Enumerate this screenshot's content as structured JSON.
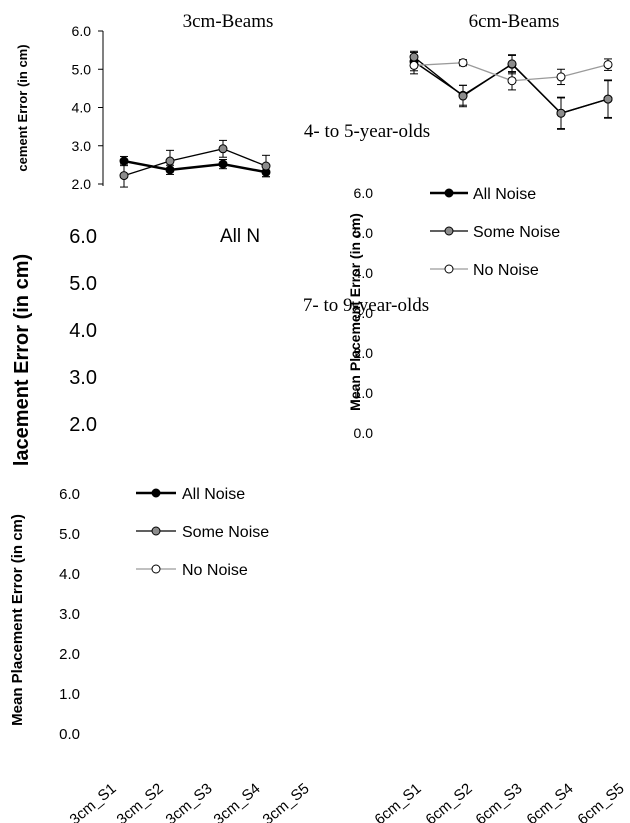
{
  "chart_data": [
    {
      "type": "line",
      "title": "3cm-Beams",
      "ylabel": "cement Error (in cm)",
      "ylim": [
        2.0,
        6.0
      ],
      "yticks": [
        "6.0",
        "5.0",
        "4.0",
        "3.0",
        "2.0"
      ],
      "categories": [
        "3cm_S1",
        "3cm_S2",
        "3cm_S3",
        "3cm_S4"
      ],
      "series": [
        {
          "name": "All Noise",
          "values": [
            2.6,
            2.37,
            2.52,
            2.31
          ],
          "err": [
            0.12,
            0.12,
            0.12,
            0.12
          ]
        },
        {
          "name": "Some Noise",
          "values": [
            2.22,
            2.6,
            2.92,
            2.47
          ],
          "err": [
            0.3,
            0.28,
            0.22,
            0.28
          ]
        }
      ]
    },
    {
      "type": "line",
      "title": "6cm-Beams",
      "ylim": [
        2.0,
        6.0
      ],
      "categories": [
        "6cm_S1",
        "6cm_S2",
        "6cm_S3",
        "6cm_S4",
        "6cm_S5"
      ],
      "series": [
        {
          "name": "All Noise",
          "values": [
            5.2,
            4.32,
            5.13,
            3.85,
            4.22
          ],
          "err": [
            0.24,
            0.26,
            0.25,
            0.42,
            0.5
          ]
        },
        {
          "name": "Some Noise",
          "values": [
            5.32,
            4.3,
            5.14,
            3.85,
            4.22
          ],
          "err": [
            0.15,
            0.28,
            0.22,
            0.4,
            0.48
          ]
        },
        {
          "name": "No Noise",
          "values": [
            5.1,
            5.17,
            4.7,
            4.8,
            5.12
          ],
          "err": [
            0.22,
            0.08,
            0.24,
            0.2,
            0.15
          ]
        }
      ]
    },
    {
      "type": "line",
      "title": "4- to 5-year-olds",
      "ylabel": "Mean Placement Error (in cm)",
      "yticks": [
        "6.0",
        "5.0",
        "4.0",
        "3.0",
        "2.0",
        "1.0",
        "0.0"
      ],
      "legend": [
        "All Noise",
        "Some Noise",
        "No Noise"
      ]
    },
    {
      "type": "line",
      "title": "7- to 9-year-olds",
      "ylabel": "lacement Error (in cm)",
      "yticks": [
        "6.0",
        "5.0",
        "4.0",
        "3.0",
        "2.0"
      ],
      "legend": [
        "All N"
      ]
    },
    {
      "type": "line",
      "ylabel": "Mean Placement Error (in cm)",
      "yticks": [
        "6.0",
        "5.0",
        "4.0",
        "3.0",
        "2.0",
        "1.0",
        "0.0"
      ],
      "legend": [
        "All Noise",
        "Some Noise",
        "No Noise"
      ],
      "categories_left": [
        "3cm_S1",
        "3cm_S2",
        "3cm_S3",
        "3cm_S4",
        "3cm_S5"
      ],
      "categories_right": [
        "6cm_S1",
        "6cm_S2",
        "6cm_S3",
        "6cm_S4",
        "6cm_S5"
      ]
    }
  ],
  "colors": {
    "all_noise": "#000000",
    "some_noise": "#8c8c8c",
    "no_noise": "#ffffff",
    "no_noise_line": "#9a9a9a",
    "axis": "#000000"
  }
}
